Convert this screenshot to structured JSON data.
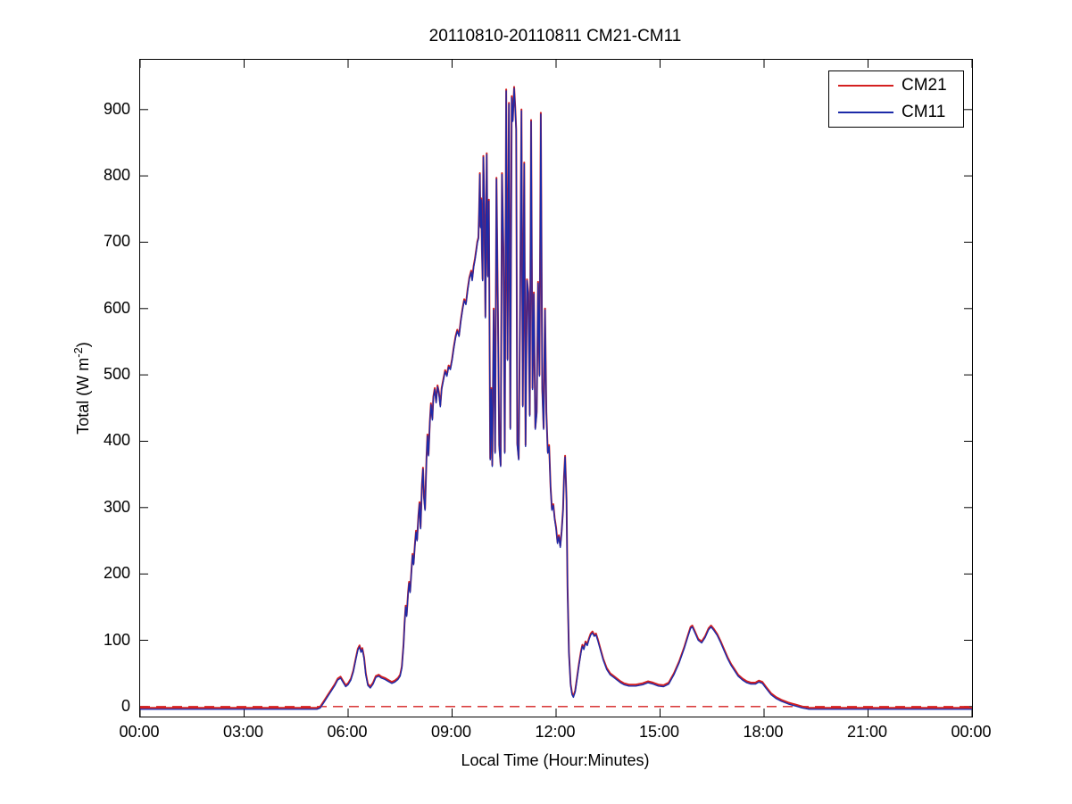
{
  "figure": {
    "title": "20110810-20110811 CM21-CM11",
    "xlabel": "Local Time (Hour:Minutes)",
    "ylabel": {
      "text": "Total (W m-2)",
      "prefix": "Total (W m",
      "superscript": "-2",
      "suffix": ")"
    }
  },
  "legend": {
    "position": "top-right",
    "entries": [
      {
        "label": "CM21",
        "color": "#d42020"
      },
      {
        "label": "CM11",
        "color": "#1c2aa8"
      }
    ]
  },
  "chart_data": {
    "type": "line",
    "title": "20110810-20110811 CM21-CM11",
    "xlabel": "Local Time (Hour:Minutes)",
    "ylabel": "Total (W m-2)",
    "y_unit": "W m-2",
    "x_unit": "local time, decimal hours",
    "xlim": [
      0,
      24
    ],
    "ylim": [
      -15,
      975
    ],
    "grid": false,
    "x_ticks": [
      {
        "h": 0,
        "label": "00:00"
      },
      {
        "h": 3,
        "label": "03:00"
      },
      {
        "h": 6,
        "label": "06:00"
      },
      {
        "h": 9,
        "label": "09:00"
      },
      {
        "h": 12,
        "label": "12:00"
      },
      {
        "h": 15,
        "label": "15:00"
      },
      {
        "h": 18,
        "label": "18:00"
      },
      {
        "h": 21,
        "label": "21:00"
      },
      {
        "h": 24,
        "label": "00:00"
      }
    ],
    "y_ticks": [
      0,
      100,
      200,
      300,
      400,
      500,
      600,
      700,
      800,
      900
    ],
    "legend_position": "top-right",
    "reference_line": {
      "y": 0,
      "style": "dashed",
      "color": "#d42020",
      "name": "zero-reference"
    },
    "series": [
      {
        "name": "CM21",
        "color": "#d42020",
        "style": "solid",
        "note": "overlaps CM11 within ~1%; slightly higher, visible at spike tops"
      },
      {
        "name": "CM11",
        "color": "#1c2aa8",
        "style": "solid",
        "note": "drawn on top of CM21"
      }
    ],
    "points_note": "digitized shared curve [local_hour, irradiance W m-2]; both pyranometer traces follow it almost identically",
    "points": [
      [
        0.0,
        -4
      ],
      [
        0.6,
        -4
      ],
      [
        1.2,
        -4
      ],
      [
        1.8,
        -4
      ],
      [
        2.4,
        -4
      ],
      [
        3.0,
        -4
      ],
      [
        3.6,
        -4
      ],
      [
        4.2,
        -4
      ],
      [
        4.7,
        -4
      ],
      [
        5.1,
        -4
      ],
      [
        5.2,
        -2
      ],
      [
        5.3,
        6
      ],
      [
        5.42,
        16
      ],
      [
        5.52,
        24
      ],
      [
        5.62,
        32
      ],
      [
        5.7,
        40
      ],
      [
        5.78,
        43
      ],
      [
        5.86,
        36
      ],
      [
        5.93,
        30
      ],
      [
        6.0,
        33
      ],
      [
        6.08,
        40
      ],
      [
        6.15,
        52
      ],
      [
        6.22,
        70
      ],
      [
        6.28,
        85
      ],
      [
        6.33,
        90
      ],
      [
        6.37,
        82
      ],
      [
        6.41,
        86
      ],
      [
        6.46,
        72
      ],
      [
        6.51,
        48
      ],
      [
        6.57,
        32
      ],
      [
        6.64,
        28
      ],
      [
        6.72,
        34
      ],
      [
        6.8,
        44
      ],
      [
        6.88,
        46
      ],
      [
        6.96,
        43
      ],
      [
        7.06,
        41
      ],
      [
        7.16,
        38
      ],
      [
        7.26,
        35
      ],
      [
        7.35,
        37
      ],
      [
        7.44,
        41
      ],
      [
        7.5,
        46
      ],
      [
        7.55,
        58
      ],
      [
        7.6,
        92
      ],
      [
        7.63,
        125
      ],
      [
        7.66,
        150
      ],
      [
        7.69,
        136
      ],
      [
        7.73,
        170
      ],
      [
        7.76,
        186
      ],
      [
        7.79,
        172
      ],
      [
        7.83,
        206
      ],
      [
        7.86,
        228
      ],
      [
        7.89,
        214
      ],
      [
        7.93,
        244
      ],
      [
        7.96,
        263
      ],
      [
        7.99,
        250
      ],
      [
        8.03,
        286
      ],
      [
        8.06,
        306
      ],
      [
        8.09,
        268
      ],
      [
        8.13,
        332
      ],
      [
        8.16,
        358
      ],
      [
        8.19,
        314
      ],
      [
        8.22,
        296
      ],
      [
        8.26,
        372
      ],
      [
        8.29,
        408
      ],
      [
        8.32,
        378
      ],
      [
        8.36,
        428
      ],
      [
        8.39,
        455
      ],
      [
        8.43,
        432
      ],
      [
        8.46,
        465
      ],
      [
        8.5,
        478
      ],
      [
        8.54,
        458
      ],
      [
        8.58,
        482
      ],
      [
        8.62,
        472
      ],
      [
        8.66,
        452
      ],
      [
        8.7,
        478
      ],
      [
        8.75,
        492
      ],
      [
        8.8,
        505
      ],
      [
        8.85,
        498
      ],
      [
        8.9,
        512
      ],
      [
        8.95,
        508
      ],
      [
        9.0,
        522
      ],
      [
        9.05,
        540
      ],
      [
        9.1,
        556
      ],
      [
        9.15,
        566
      ],
      [
        9.2,
        558
      ],
      [
        9.25,
        580
      ],
      [
        9.3,
        598
      ],
      [
        9.35,
        612
      ],
      [
        9.4,
        606
      ],
      [
        9.45,
        628
      ],
      [
        9.5,
        645
      ],
      [
        9.55,
        655
      ],
      [
        9.58,
        642
      ],
      [
        9.62,
        662
      ],
      [
        9.66,
        673
      ],
      [
        9.7,
        688
      ],
      [
        9.73,
        699
      ],
      [
        9.76,
        705
      ],
      [
        9.78,
        748
      ],
      [
        9.8,
        802
      ],
      [
        9.82,
        722
      ],
      [
        9.84,
        764
      ],
      [
        9.86,
        688
      ],
      [
        9.88,
        642
      ],
      [
        9.9,
        828
      ],
      [
        9.93,
        756
      ],
      [
        9.96,
        586
      ],
      [
        10.0,
        832
      ],
      [
        10.03,
        648
      ],
      [
        10.06,
        762
      ],
      [
        10.1,
        372
      ],
      [
        10.13,
        478
      ],
      [
        10.16,
        362
      ],
      [
        10.2,
        598
      ],
      [
        10.24,
        382
      ],
      [
        10.28,
        795
      ],
      [
        10.32,
        602
      ],
      [
        10.36,
        392
      ],
      [
        10.4,
        362
      ],
      [
        10.44,
        802
      ],
      [
        10.48,
        688
      ],
      [
        10.52,
        382
      ],
      [
        10.56,
        928
      ],
      [
        10.6,
        522
      ],
      [
        10.64,
        908
      ],
      [
        10.68,
        418
      ],
      [
        10.72,
        918
      ],
      [
        10.75,
        882
      ],
      [
        10.79,
        932
      ],
      [
        10.82,
        902
      ],
      [
        10.85,
        868
      ],
      [
        10.88,
        395
      ],
      [
        10.92,
        372
      ],
      [
        10.96,
        586
      ],
      [
        11.0,
        898
      ],
      [
        11.04,
        452
      ],
      [
        11.08,
        818
      ],
      [
        11.12,
        392
      ],
      [
        11.16,
        642
      ],
      [
        11.2,
        622
      ],
      [
        11.24,
        438
      ],
      [
        11.28,
        882
      ],
      [
        11.32,
        478
      ],
      [
        11.36,
        622
      ],
      [
        11.4,
        418
      ],
      [
        11.44,
        442
      ],
      [
        11.48,
        638
      ],
      [
        11.52,
        498
      ],
      [
        11.56,
        893
      ],
      [
        11.6,
        478
      ],
      [
        11.64,
        418
      ],
      [
        11.68,
        598
      ],
      [
        11.72,
        442
      ],
      [
        11.76,
        382
      ],
      [
        11.8,
        392
      ],
      [
        11.84,
        330
      ],
      [
        11.88,
        296
      ],
      [
        11.92,
        303
      ],
      [
        11.96,
        282
      ],
      [
        12.0,
        268
      ],
      [
        12.04,
        246
      ],
      [
        12.08,
        256
      ],
      [
        12.12,
        240
      ],
      [
        12.16,
        262
      ],
      [
        12.2,
        295
      ],
      [
        12.23,
        345
      ],
      [
        12.26,
        376
      ],
      [
        12.3,
        310
      ],
      [
        12.33,
        180
      ],
      [
        12.37,
        80
      ],
      [
        12.42,
        32
      ],
      [
        12.46,
        18
      ],
      [
        12.5,
        14
      ],
      [
        12.55,
        22
      ],
      [
        12.6,
        40
      ],
      [
        12.66,
        62
      ],
      [
        12.72,
        82
      ],
      [
        12.76,
        91
      ],
      [
        12.8,
        86
      ],
      [
        12.85,
        96
      ],
      [
        12.9,
        92
      ],
      [
        12.95,
        101
      ],
      [
        13.0,
        108
      ],
      [
        13.05,
        111
      ],
      [
        13.1,
        106
      ],
      [
        13.15,
        108
      ],
      [
        13.2,
        100
      ],
      [
        13.28,
        85
      ],
      [
        13.36,
        70
      ],
      [
        13.46,
        56
      ],
      [
        13.56,
        48
      ],
      [
        13.66,
        44
      ],
      [
        13.76,
        40
      ],
      [
        13.86,
        36
      ],
      [
        13.96,
        33
      ],
      [
        14.1,
        31
      ],
      [
        14.3,
        31
      ],
      [
        14.5,
        33
      ],
      [
        14.65,
        36
      ],
      [
        14.8,
        34
      ],
      [
        14.95,
        31
      ],
      [
        15.1,
        30
      ],
      [
        15.25,
        34
      ],
      [
        15.4,
        48
      ],
      [
        15.55,
        66
      ],
      [
        15.7,
        88
      ],
      [
        15.8,
        105
      ],
      [
        15.88,
        118
      ],
      [
        15.93,
        120
      ],
      [
        16.0,
        112
      ],
      [
        16.1,
        100
      ],
      [
        16.2,
        96
      ],
      [
        16.3,
        104
      ],
      [
        16.4,
        116
      ],
      [
        16.47,
        120
      ],
      [
        16.55,
        115
      ],
      [
        16.65,
        107
      ],
      [
        16.75,
        96
      ],
      [
        16.85,
        84
      ],
      [
        16.95,
        72
      ],
      [
        17.05,
        62
      ],
      [
        17.15,
        54
      ],
      [
        17.25,
        46
      ],
      [
        17.38,
        40
      ],
      [
        17.5,
        36
      ],
      [
        17.62,
        34
      ],
      [
        17.75,
        34
      ],
      [
        17.85,
        37
      ],
      [
        17.95,
        35
      ],
      [
        18.05,
        28
      ],
      [
        18.2,
        18
      ],
      [
        18.35,
        12
      ],
      [
        18.5,
        8
      ],
      [
        18.7,
        4
      ],
      [
        18.9,
        1
      ],
      [
        19.1,
        -2
      ],
      [
        19.3,
        -4
      ],
      [
        19.7,
        -4
      ],
      [
        20.2,
        -4
      ],
      [
        20.8,
        -4
      ],
      [
        21.4,
        -4
      ],
      [
        22.0,
        -4
      ],
      [
        22.6,
        -4
      ],
      [
        23.2,
        -4
      ],
      [
        23.7,
        -4
      ],
      [
        24.0,
        -4
      ]
    ]
  }
}
